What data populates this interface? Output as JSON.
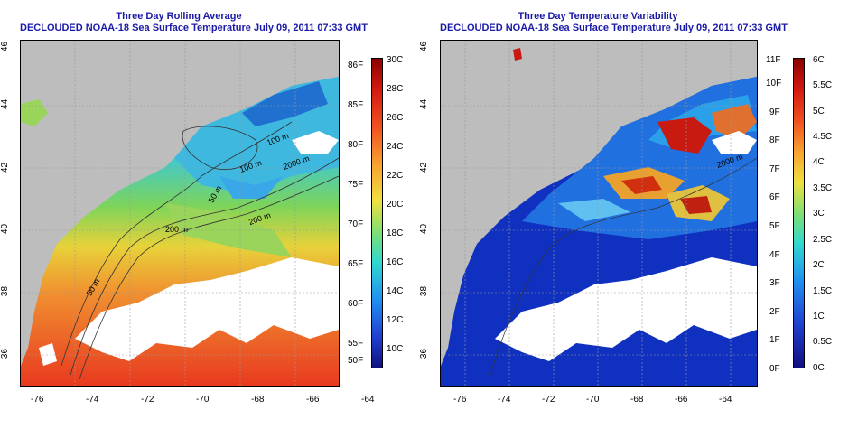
{
  "panels": [
    {
      "title_line1": "Three Day Rolling Average",
      "title_line2": "DECLOUDED NOAA-18 Sea Surface Temperature July 09, 2011 07:33 GMT",
      "colorbar_left": [
        "86F",
        "85F",
        "80F",
        "75F",
        "70F",
        "65F",
        "60F",
        "55F",
        "50F"
      ],
      "colorbar_right": [
        "30C",
        "28C",
        "26C",
        "24C",
        "22C",
        "20C",
        "18C",
        "16C",
        "14C",
        "12C",
        "10C"
      ],
      "contour_labels": [
        "100 m",
        "100 m",
        "2000 m",
        "200 m",
        "50 m",
        "50 m",
        "200 m"
      ]
    },
    {
      "title_line1": "Three Day Temperature Variability",
      "title_line2": "DECLOUDED NOAA-18 Sea Surface Temperature July 09, 2011 07:33 GMT",
      "colorbar_left": [
        "11F",
        "10F",
        "9F",
        "8F",
        "7F",
        "6F",
        "5F",
        "4F",
        "3F",
        "2F",
        "1F",
        "0F"
      ],
      "colorbar_right": [
        "6C",
        "5.5C",
        "5C",
        "4.5C",
        "4C",
        "3.5C",
        "3C",
        "2.5C",
        "2C",
        "1.5C",
        "1C",
        "0.5C",
        "0C"
      ],
      "contour_labels": [
        "2000 m"
      ]
    }
  ],
  "axes": {
    "x_ticks": [
      "-76",
      "-74",
      "-72",
      "-70",
      "-68",
      "-66",
      "-64"
    ],
    "y_ticks": [
      "46",
      "44",
      "42",
      "40",
      "38",
      "36"
    ]
  },
  "colors": {
    "title": "#1a1aa6",
    "land": "#bdbdbd",
    "cloud": "#ffffff"
  }
}
